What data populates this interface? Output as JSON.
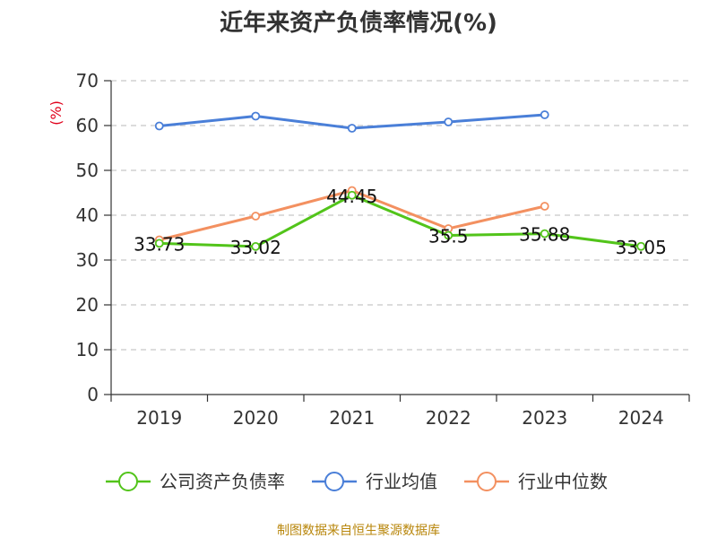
{
  "chart_data": {
    "type": "line",
    "title": "近年来资产负债率情况(%)",
    "ylabel": "(%)",
    "xlabel": "",
    "categories": [
      "2019",
      "2020",
      "2021",
      "2022",
      "2023",
      "2024"
    ],
    "ylim": [
      0,
      70
    ],
    "yticks": [
      0,
      10,
      20,
      30,
      40,
      50,
      60,
      70
    ],
    "grid": true,
    "legend_position": "bottom",
    "series": [
      {
        "name": "公司资产负债率",
        "color": "#52c41a",
        "values": [
          33.73,
          33.02,
          44.45,
          35.5,
          35.88,
          33.05
        ],
        "labels": [
          "33.73",
          "33.02",
          "44.45",
          "35.5",
          "35.88",
          "33.05"
        ]
      },
      {
        "name": "行业均值",
        "color": "#4a7fd8",
        "values": [
          59.9,
          62.1,
          59.4,
          60.8,
          62.4,
          null
        ]
      },
      {
        "name": "行业中位数",
        "color": "#f39060",
        "values": [
          34.5,
          39.8,
          45.5,
          37.0,
          42.0,
          null
        ]
      }
    ],
    "source": "制图数据来自恒生聚源数据库"
  }
}
